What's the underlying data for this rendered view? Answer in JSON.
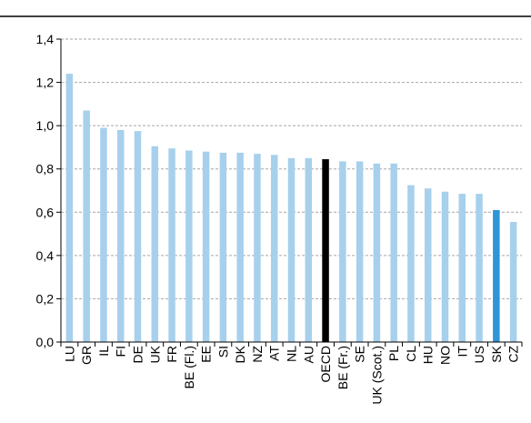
{
  "chart_data": {
    "type": "bar",
    "title": "",
    "xlabel": "",
    "ylabel": "",
    "ylim": [
      0,
      1.4
    ],
    "yticks": [
      "0,0",
      "0,2",
      "0,4",
      "0,6",
      "0,8",
      "1,0",
      "1,2",
      "1,4"
    ],
    "grid": true,
    "legend": "none",
    "categories": [
      "LU",
      "GR",
      "IL",
      "FI",
      "DE",
      "UK",
      "FR",
      "BE (Fl.)",
      "EE",
      "SI",
      "DK",
      "NZ",
      "AT",
      "NL",
      "AU",
      "OECD",
      "BE (Fr.)",
      "SE",
      "UK (Scot.)",
      "PL",
      "CL",
      "HU",
      "NO",
      "IT",
      "US",
      "SK",
      "CZ"
    ],
    "values": [
      1.24,
      1.07,
      0.99,
      0.98,
      0.975,
      0.905,
      0.895,
      0.885,
      0.88,
      0.875,
      0.875,
      0.87,
      0.865,
      0.85,
      0.85,
      0.845,
      0.835,
      0.835,
      0.825,
      0.825,
      0.725,
      0.71,
      0.695,
      0.685,
      0.685,
      0.61,
      0.555
    ],
    "highlight": {
      "OECD": "#000000",
      "SK": "#2e96d6"
    },
    "colors": {
      "bar": "#a7d0ec",
      "grid": "#a6a6a6",
      "axis": "#000000",
      "top_rule": "#000000"
    }
  }
}
